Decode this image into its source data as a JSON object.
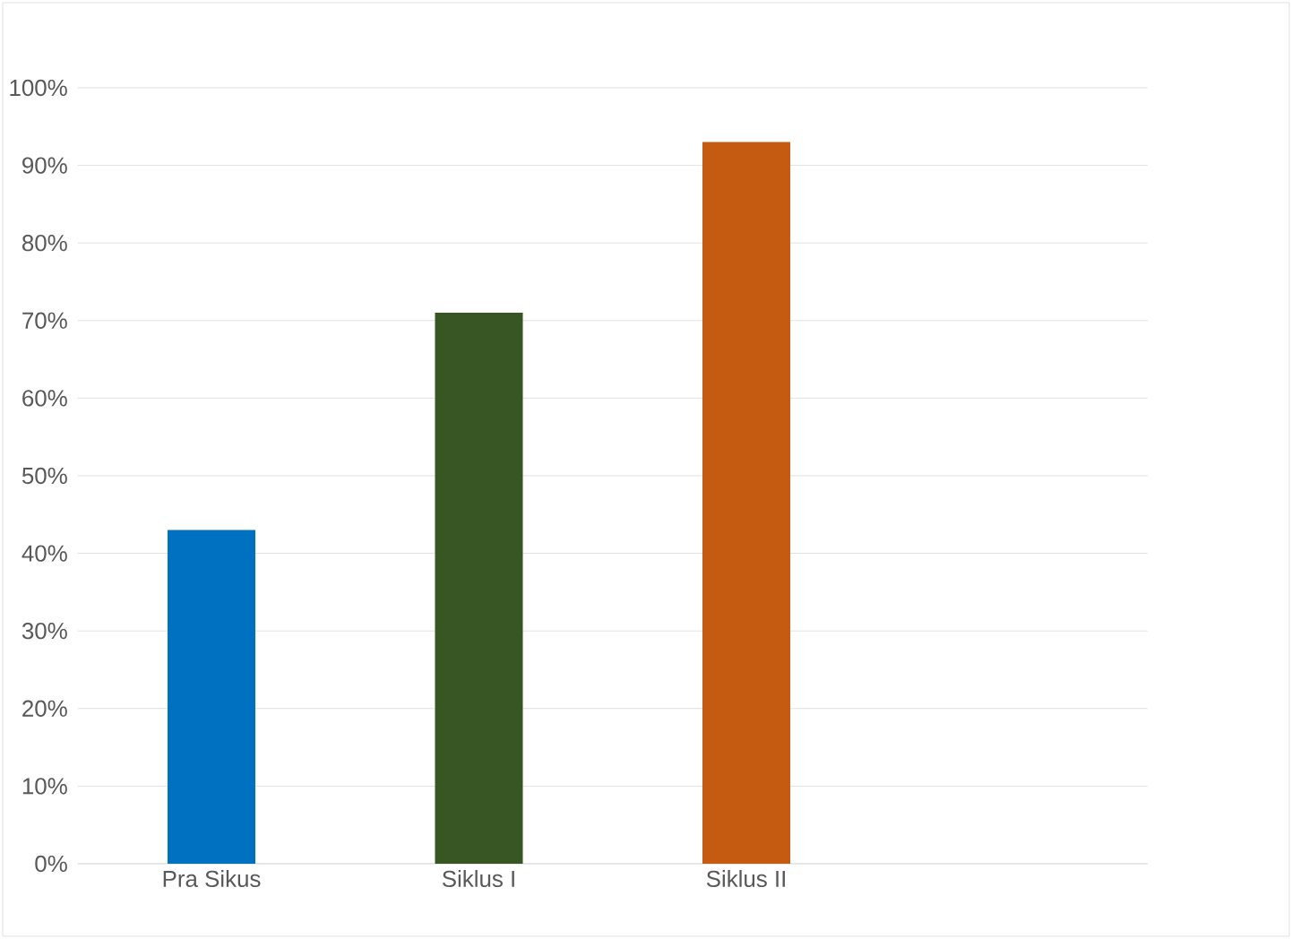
{
  "chart_data": {
    "type": "bar",
    "categories": [
      "Pra Sikus",
      "Siklus I",
      "Siklus II",
      null
    ],
    "values": [
      43,
      71,
      93,
      null
    ],
    "colors": [
      "#0070c0",
      "#375623",
      "#c55a11",
      "#000000"
    ],
    "ylim": [
      0,
      100
    ],
    "yticks": [
      {
        "value": 0,
        "label": "0%"
      },
      {
        "value": 10,
        "label": "10%"
      },
      {
        "value": 20,
        "label": "20%"
      },
      {
        "value": 30,
        "label": "30%"
      },
      {
        "value": 40,
        "label": "40%"
      },
      {
        "value": 50,
        "label": "50%"
      },
      {
        "value": 60,
        "label": "60%"
      },
      {
        "value": 70,
        "label": "70%"
      },
      {
        "value": 80,
        "label": "80%"
      },
      {
        "value": 90,
        "label": "90%"
      },
      {
        "value": 100,
        "label": "100%"
      }
    ],
    "grid": "y"
  }
}
